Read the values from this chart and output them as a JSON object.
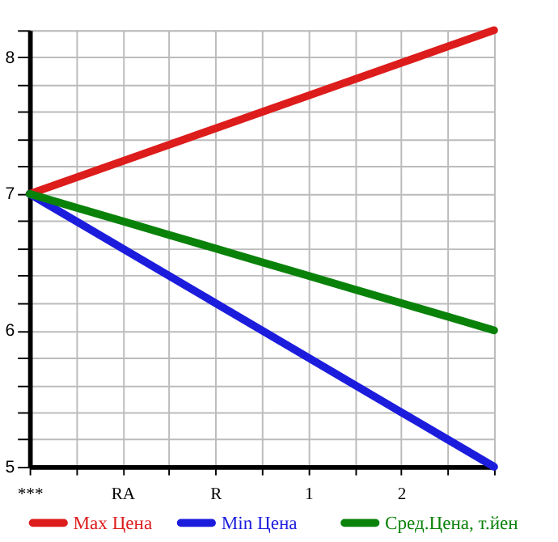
{
  "chart_data": {
    "type": "line",
    "categories": [
      "***",
      null,
      "RA",
      null,
      "R",
      null,
      "1",
      null,
      "2",
      null,
      null
    ],
    "ylim": [
      5,
      8.2
    ],
    "yticks": [
      5,
      {
        "value": 5.2,
        "label": null
      },
      {
        "value": 5.4,
        "label": null
      },
      {
        "value": 5.6,
        "label": null
      },
      {
        "value": 5.8,
        "label": null
      },
      6,
      {
        "value": 6.2,
        "label": null
      },
      {
        "value": 6.4,
        "label": null
      },
      {
        "value": 6.6,
        "label": null
      },
      {
        "value": 6.8,
        "label": null
      },
      7,
      {
        "value": 7.2,
        "label": null
      },
      {
        "value": 7.4,
        "label": null
      },
      {
        "value": 7.6,
        "label": null
      },
      {
        "value": 7.8,
        "label": null
      },
      8,
      {
        "value": 8.2,
        "label": null
      }
    ],
    "series": [
      {
        "name": "Max Цена",
        "color": "#dd1c1c",
        "values": [
          7,
          7.12,
          7.24,
          7.36,
          7.48,
          7.6,
          7.72,
          7.84,
          7.96,
          8.08,
          8.2
        ]
      },
      {
        "name": "Min Цена",
        "color": "#1c1cdd",
        "values": [
          7,
          6.8,
          6.6,
          6.4,
          6.2,
          6,
          5.8,
          5.6,
          5.4,
          5.2,
          5
        ]
      },
      {
        "name": "Сред.Цена, т.йен",
        "color": "#0a820a",
        "values": [
          7,
          6.9,
          6.8,
          6.7,
          6.6,
          6.5,
          6.4,
          6.3,
          6.2,
          6.1,
          6
        ]
      }
    ],
    "grid": true,
    "legend": "bottom",
    "marker": "none",
    "line_style": "solid"
  }
}
